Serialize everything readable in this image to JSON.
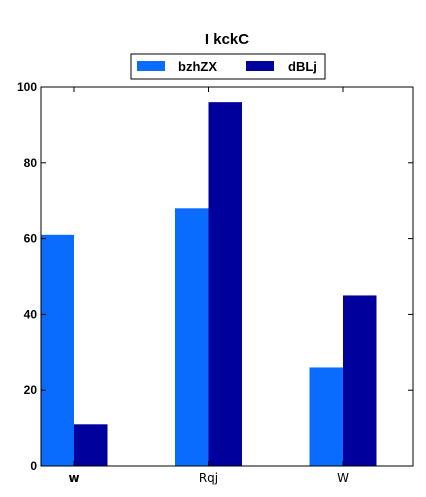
{
  "chart_data": {
    "type": "bar",
    "title": "I kckC",
    "xlabel": "",
    "ylabel": "",
    "categories": [
      "w",
      "Rqj",
      "W"
    ],
    "series": [
      {
        "name": "bzhZX",
        "values": [
          61,
          68,
          26
        ],
        "color": "#0a6cff"
      },
      {
        "name": "dBLj",
        "values": [
          11,
          96,
          45
        ],
        "color": "#00009c"
      }
    ],
    "ylim": [
      0,
      100
    ],
    "yticks": [
      "0",
      "20",
      "40",
      "60",
      "80",
      "100"
    ],
    "legend": "top-center",
    "grid": false
  }
}
